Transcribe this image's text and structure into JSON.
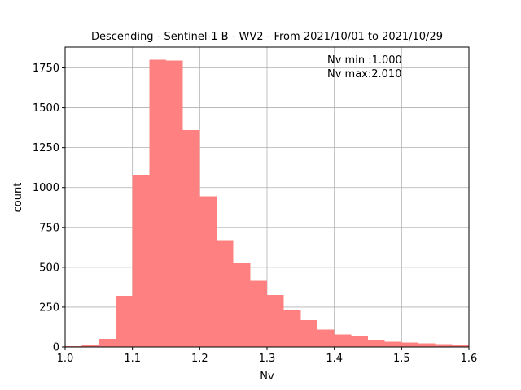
{
  "chart_data": {
    "type": "bar",
    "title": "Descending - Sentinel-1 B - WV2 - From 2021/10/01 to 2021/10/29",
    "xlabel": "Nv",
    "ylabel": "count",
    "xlim": [
      1.0,
      1.6
    ],
    "ylim": [
      0,
      1880
    ],
    "xticks": [
      1.0,
      1.1,
      1.2,
      1.3,
      1.4,
      1.5,
      1.6
    ],
    "xtick_labels": [
      "1.0",
      "1.1",
      "1.2",
      "1.3",
      "1.4",
      "1.5",
      "1.6"
    ],
    "yticks": [
      0,
      250,
      500,
      750,
      1000,
      1250,
      1500,
      1750
    ],
    "ytick_labels": [
      "0",
      "250",
      "500",
      "750",
      "1000",
      "1250",
      "1500",
      "1750"
    ],
    "grid": true,
    "bar_color": "#ff8080",
    "annotations": [
      "Nv min :1.000",
      "Nv max:2.010"
    ],
    "bins": [
      {
        "x0": 1.0,
        "x1": 1.025,
        "count": 5
      },
      {
        "x0": 1.025,
        "x1": 1.05,
        "count": 15
      },
      {
        "x0": 1.05,
        "x1": 1.075,
        "count": 50
      },
      {
        "x0": 1.075,
        "x1": 1.1,
        "count": 320
      },
      {
        "x0": 1.1,
        "x1": 1.125,
        "count": 1080
      },
      {
        "x0": 1.125,
        "x1": 1.15,
        "count": 1800
      },
      {
        "x0": 1.15,
        "x1": 1.175,
        "count": 1795
      },
      {
        "x0": 1.175,
        "x1": 1.2,
        "count": 1360
      },
      {
        "x0": 1.2,
        "x1": 1.225,
        "count": 945
      },
      {
        "x0": 1.225,
        "x1": 1.25,
        "count": 670
      },
      {
        "x0": 1.25,
        "x1": 1.275,
        "count": 525
      },
      {
        "x0": 1.275,
        "x1": 1.3,
        "count": 415
      },
      {
        "x0": 1.3,
        "x1": 1.325,
        "count": 325
      },
      {
        "x0": 1.325,
        "x1": 1.35,
        "count": 232
      },
      {
        "x0": 1.35,
        "x1": 1.375,
        "count": 168
      },
      {
        "x0": 1.375,
        "x1": 1.4,
        "count": 110
      },
      {
        "x0": 1.4,
        "x1": 1.425,
        "count": 78
      },
      {
        "x0": 1.425,
        "x1": 1.45,
        "count": 68
      },
      {
        "x0": 1.45,
        "x1": 1.475,
        "count": 45
      },
      {
        "x0": 1.475,
        "x1": 1.5,
        "count": 32
      },
      {
        "x0": 1.5,
        "x1": 1.525,
        "count": 28
      },
      {
        "x0": 1.525,
        "x1": 1.55,
        "count": 22
      },
      {
        "x0": 1.55,
        "x1": 1.575,
        "count": 18
      },
      {
        "x0": 1.575,
        "x1": 1.6,
        "count": 12
      }
    ]
  }
}
